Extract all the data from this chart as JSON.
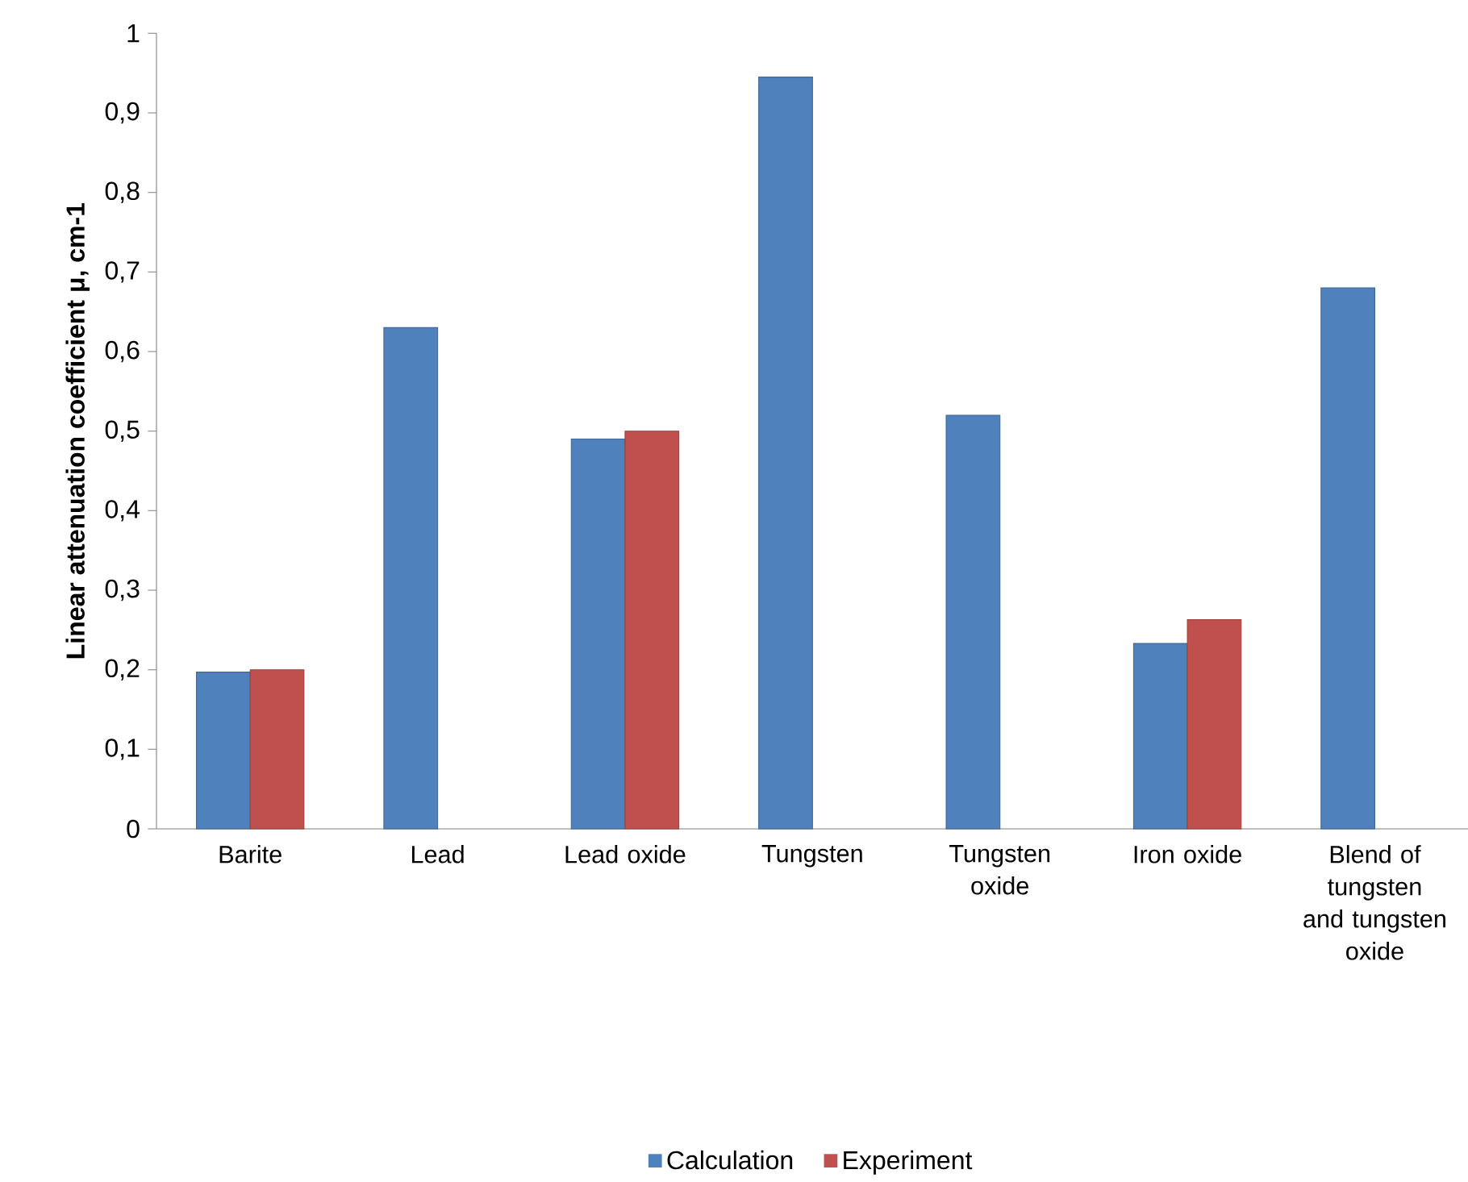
{
  "chart_data": {
    "type": "bar",
    "ylabel": "Linear attenuation coefficient μ, cm-1",
    "categories": [
      "Barite",
      "Lead",
      "Lead oxide",
      "Tungsten",
      "Tungsten oxide",
      "Iron oxide",
      "Blend of tungsten and tungsten oxide"
    ],
    "series": [
      {
        "name": "Calculation",
        "color": "#4f81bd",
        "values": [
          0.197,
          0.63,
          0.49,
          0.945,
          0.52,
          0.233,
          0.68
        ]
      },
      {
        "name": "Experiment",
        "color": "#c0504d",
        "values": [
          0.2,
          null,
          0.5,
          null,
          null,
          0.263,
          null
        ]
      }
    ],
    "ylim": [
      0,
      1
    ],
    "yticks": [
      0,
      {
        "value": 0.1,
        "label": "0,1"
      },
      {
        "value": 0.2,
        "label": "0,2"
      },
      {
        "value": 0.3,
        "label": "0,3"
      },
      {
        "value": 0.4,
        "label": "0,4"
      },
      {
        "value": 0.5,
        "label": "0,5"
      },
      {
        "value": 0.6,
        "label": "0,6"
      },
      {
        "value": 0.7,
        "label": "0,7"
      },
      {
        "value": 0.8,
        "label": "0,8"
      },
      {
        "value": 0.9,
        "label": "0,9"
      },
      1
    ],
    "grid": false,
    "legend": "bottom"
  }
}
